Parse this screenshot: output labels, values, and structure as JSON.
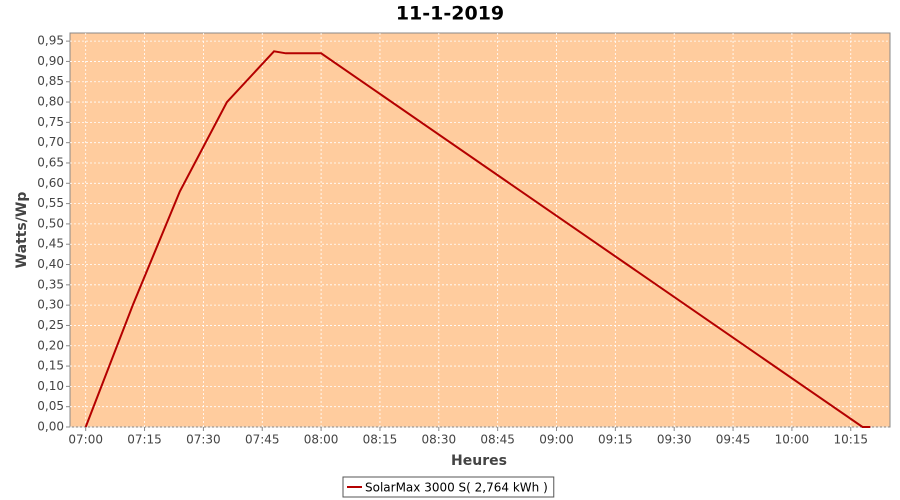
{
  "chart_data": {
    "type": "line",
    "title": "11-1-2019",
    "x_label": "Heures",
    "y_label": "Watts/Wp",
    "x": [
      "07:00",
      "07:12",
      "07:24",
      "07:36",
      "07:48",
      "07:51",
      "08:00",
      "10:18",
      "10:20"
    ],
    "series": [
      {
        "name": "SolarMax 3000 S( 2,764 kWh )",
        "color": "#b40000",
        "values": [
          0,
          0.3,
          0.58,
          0.8,
          0.925,
          0.92,
          0.92,
          0,
          0
        ]
      }
    ],
    "xlim": [
      "06:56",
      "10:25"
    ],
    "xticks": [
      "07:00",
      "07:15",
      "07:30",
      "07:45",
      "08:00",
      "08:15",
      "08:30",
      "08:45",
      "09:00",
      "09:15",
      "09:30",
      "09:45",
      "10:00",
      "10:15"
    ],
    "ylim": [
      0,
      0.97
    ],
    "yticks": [
      {
        "value": 0,
        "label": "0,00"
      },
      {
        "value": 0.05,
        "label": "0,05"
      },
      {
        "value": 0.1,
        "label": "0,10"
      },
      {
        "value": 0.15,
        "label": "0,15"
      },
      {
        "value": 0.2,
        "label": "0,20"
      },
      {
        "value": 0.25,
        "label": "0,25"
      },
      {
        "value": 0.3,
        "label": "0,30"
      },
      {
        "value": 0.35,
        "label": "0,35"
      },
      {
        "value": 0.4,
        "label": "0,40"
      },
      {
        "value": 0.45,
        "label": "0,45"
      },
      {
        "value": 0.5,
        "label": "0,50"
      },
      {
        "value": 0.55,
        "label": "0,55"
      },
      {
        "value": 0.6,
        "label": "0,60"
      },
      {
        "value": 0.65,
        "label": "0,65"
      },
      {
        "value": 0.7,
        "label": "0,70"
      },
      {
        "value": 0.75,
        "label": "0,75"
      },
      {
        "value": 0.8,
        "label": "0,80"
      },
      {
        "value": 0.85,
        "label": "0,85"
      },
      {
        "value": 0.9,
        "label": "0,90"
      },
      {
        "value": 0.95,
        "label": "0,95"
      }
    ],
    "grid": true,
    "plot_background": "#ffcc9e",
    "legend_position": "bottom"
  }
}
